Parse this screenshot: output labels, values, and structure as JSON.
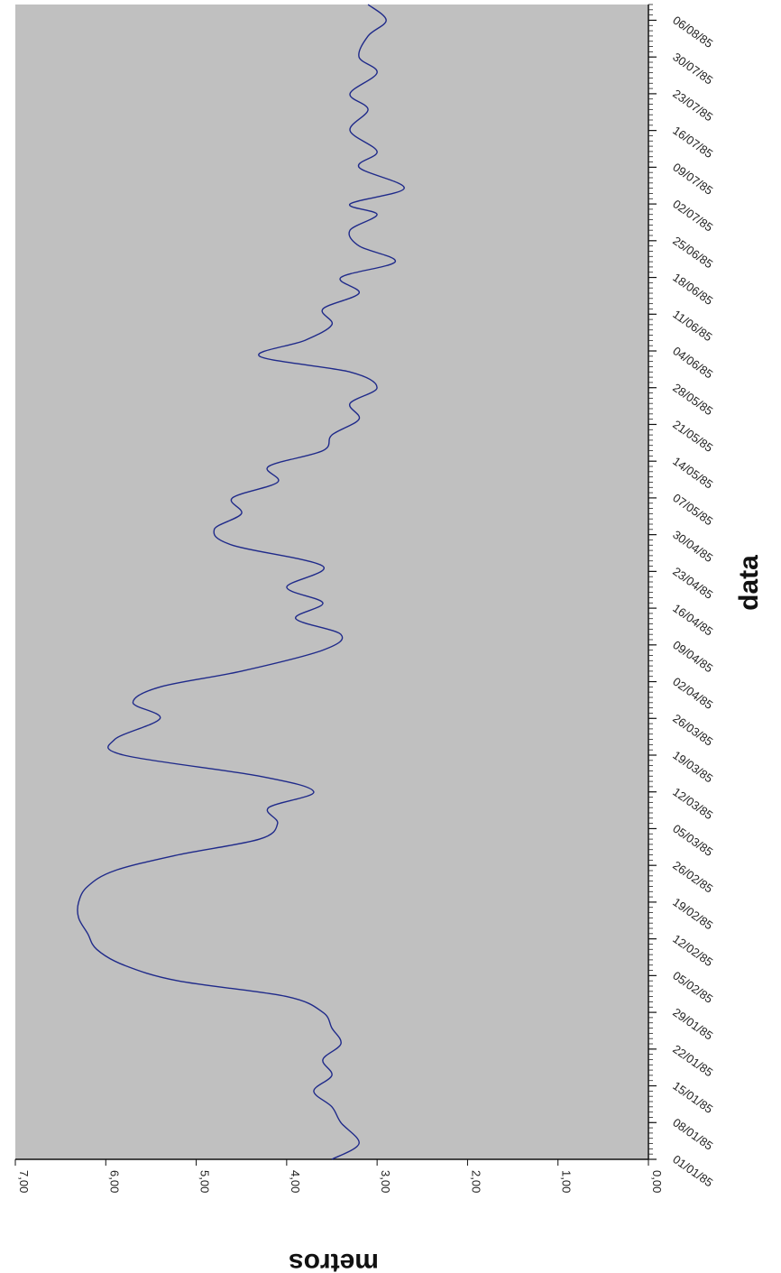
{
  "chart_data": {
    "type": "line",
    "title": "",
    "xlabel": "data",
    "ylabel": "metros",
    "ylim": [
      0,
      7
    ],
    "grid": false,
    "legend": "none",
    "plot_background": "#c0c0c0",
    "line_color": "#1f2a8a",
    "y_ticks": [
      "0,00",
      "1,00",
      "2,00",
      "3,00",
      "4,00",
      "5,00",
      "6,00",
      "7,00"
    ],
    "x_ticks": [
      "01/01/85",
      "08/01/85",
      "15/01/85",
      "22/01/85",
      "29/01/85",
      "05/02/85",
      "12/02/85",
      "19/02/85",
      "26/02/85",
      "05/03/85",
      "12/03/85",
      "19/03/85",
      "26/03/85",
      "02/04/85",
      "09/04/85",
      "16/04/85",
      "23/04/85",
      "30/04/85",
      "07/05/85",
      "14/05/85",
      "21/05/85",
      "28/05/85",
      "04/06/85",
      "11/06/85",
      "18/06/85",
      "25/06/85",
      "02/07/85",
      "09/07/85",
      "16/07/85",
      "23/07/85",
      "30/07/85",
      "06/08/85"
    ],
    "series": [
      {
        "x": [
          "1985-01-01",
          "1985-01-04",
          "1985-01-08",
          "1985-01-11",
          "1985-01-14",
          "1985-01-17",
          "1985-01-20",
          "1985-01-23",
          "1985-01-26",
          "1985-01-29",
          "1985-02-01",
          "1985-02-04",
          "1985-02-07",
          "1985-02-10",
          "1985-02-13",
          "1985-02-16",
          "1985-02-19",
          "1985-02-22",
          "1985-02-25",
          "1985-02-28",
          "1985-03-03",
          "1985-03-06",
          "1985-03-09",
          "1985-03-12",
          "1985-03-15",
          "1985-03-19",
          "1985-03-22",
          "1985-03-26",
          "1985-03-29",
          "1985-04-01",
          "1985-04-04",
          "1985-04-08",
          "1985-04-11",
          "1985-04-14",
          "1985-04-17",
          "1985-04-20",
          "1985-04-24",
          "1985-04-28",
          "1985-05-01",
          "1985-05-04",
          "1985-05-07",
          "1985-05-10",
          "1985-05-13",
          "1985-05-16",
          "1985-05-19",
          "1985-05-22",
          "1985-05-25",
          "1985-05-28",
          "1985-05-31",
          "1985-06-03",
          "1985-06-06",
          "1985-06-09",
          "1985-06-12",
          "1985-06-15",
          "1985-06-18",
          "1985-06-21",
          "1985-06-24",
          "1985-06-27",
          "1985-06-30",
          "1985-07-02",
          "1985-07-05",
          "1985-07-09",
          "1985-07-12",
          "1985-07-16",
          "1985-07-20",
          "1985-07-23",
          "1985-07-27",
          "1985-07-30",
          "1985-08-03",
          "1985-08-06",
          "1985-08-09"
        ],
        "values": [
          3.5,
          3.2,
          3.4,
          3.5,
          3.7,
          3.5,
          3.6,
          3.4,
          3.5,
          3.6,
          4.0,
          5.2,
          5.8,
          6.1,
          6.2,
          6.3,
          6.3,
          6.2,
          5.9,
          5.2,
          4.3,
          4.1,
          4.2,
          3.7,
          4.3,
          5.8,
          5.9,
          5.4,
          5.7,
          5.4,
          4.5,
          3.6,
          3.4,
          3.9,
          3.6,
          4.0,
          3.6,
          4.6,
          4.8,
          4.5,
          4.6,
          4.1,
          4.2,
          3.6,
          3.5,
          3.2,
          3.3,
          3.0,
          3.3,
          4.3,
          3.8,
          3.5,
          3.6,
          3.2,
          3.4,
          2.8,
          3.2,
          3.3,
          3.0,
          3.3,
          2.7,
          3.2,
          3.0,
          3.3,
          3.1,
          3.3,
          3.0,
          3.2,
          3.1,
          2.9,
          3.1
        ]
      }
    ]
  }
}
